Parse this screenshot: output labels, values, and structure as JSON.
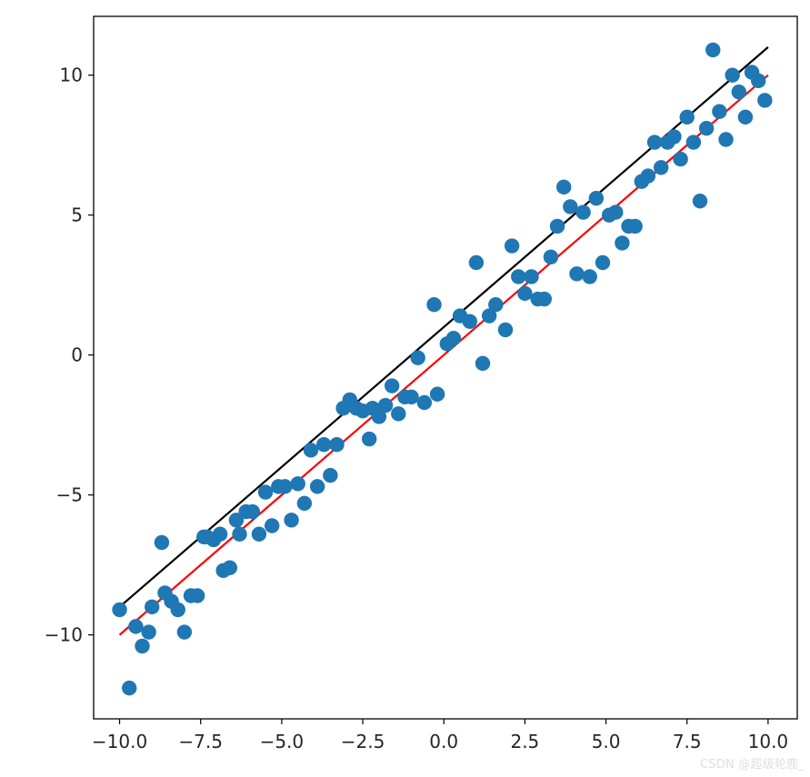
{
  "watermark": "CSDN @超级轮鹿_",
  "colors": {
    "background": "#ffffff",
    "axes": "#000000",
    "points": "#1f77b4",
    "true_line": "#000000",
    "fit_line": "#ff0000",
    "text": "#262626"
  },
  "chart_data": {
    "type": "scatter",
    "title": "",
    "xlabel": "",
    "ylabel": "",
    "xlim": [
      -10.8,
      10.9
    ],
    "ylim": [
      -13.0,
      12.1
    ],
    "xticks": [
      -10.0,
      -7.5,
      -5.0,
      -2.5,
      0.0,
      2.5,
      5.0,
      7.5,
      10.0
    ],
    "xtick_labels": [
      "−10.0",
      "−7.5",
      "−5.0",
      "−2.5",
      "0.0",
      "2.5",
      "5.0",
      "7.5",
      "10.0"
    ],
    "yticks": [
      -10,
      -5,
      0,
      5,
      10
    ],
    "ytick_labels": [
      "−10",
      "−5",
      "0",
      "5",
      "10"
    ],
    "grid": false,
    "legend": null,
    "series": [
      {
        "type": "scatter",
        "color": "#1f77b4",
        "points": [
          [
            -10.0,
            -9.1
          ],
          [
            -9.7,
            -11.9
          ],
          [
            -9.5,
            -9.7
          ],
          [
            -9.3,
            -10.4
          ],
          [
            -9.1,
            -9.9
          ],
          [
            -9.0,
            -9.0
          ],
          [
            -8.7,
            -6.7
          ],
          [
            -8.6,
            -8.5
          ],
          [
            -8.4,
            -8.8
          ],
          [
            -8.2,
            -9.1
          ],
          [
            -8.0,
            -9.9
          ],
          [
            -7.8,
            -8.6
          ],
          [
            -7.6,
            -8.6
          ],
          [
            -7.4,
            -6.5
          ],
          [
            -7.3,
            -6.5
          ],
          [
            -7.1,
            -6.6
          ],
          [
            -6.9,
            -6.4
          ],
          [
            -6.8,
            -7.7
          ],
          [
            -6.6,
            -7.6
          ],
          [
            -6.4,
            -5.9
          ],
          [
            -6.3,
            -6.4
          ],
          [
            -6.1,
            -5.6
          ],
          [
            -5.9,
            -5.6
          ],
          [
            -5.7,
            -6.4
          ],
          [
            -5.5,
            -4.9
          ],
          [
            -5.3,
            -6.1
          ],
          [
            -5.1,
            -4.7
          ],
          [
            -4.9,
            -4.7
          ],
          [
            -4.7,
            -5.9
          ],
          [
            -4.5,
            -4.6
          ],
          [
            -4.3,
            -5.3
          ],
          [
            -4.1,
            -3.4
          ],
          [
            -3.9,
            -4.7
          ],
          [
            -3.7,
            -3.2
          ],
          [
            -3.5,
            -4.3
          ],
          [
            -3.3,
            -3.2
          ],
          [
            -3.1,
            -1.9
          ],
          [
            -2.9,
            -1.6
          ],
          [
            -2.7,
            -1.9
          ],
          [
            -2.5,
            -2.0
          ],
          [
            -2.3,
            -3.0
          ],
          [
            -2.2,
            -1.9
          ],
          [
            -2.0,
            -2.2
          ],
          [
            -1.8,
            -1.8
          ],
          [
            -1.6,
            -1.1
          ],
          [
            -1.4,
            -2.1
          ],
          [
            -1.2,
            -1.5
          ],
          [
            -1.0,
            -1.5
          ],
          [
            -0.8,
            -0.1
          ],
          [
            -0.6,
            -1.7
          ],
          [
            -0.3,
            1.8
          ],
          [
            -0.2,
            -1.4
          ],
          [
            0.1,
            0.4
          ],
          [
            0.3,
            0.6
          ],
          [
            0.5,
            1.4
          ],
          [
            0.8,
            1.2
          ],
          [
            1.0,
            3.3
          ],
          [
            1.2,
            -0.3
          ],
          [
            1.4,
            1.4
          ],
          [
            1.6,
            1.8
          ],
          [
            1.9,
            0.9
          ],
          [
            2.1,
            3.9
          ],
          [
            2.3,
            2.8
          ],
          [
            2.5,
            2.2
          ],
          [
            2.7,
            2.8
          ],
          [
            2.9,
            2.0
          ],
          [
            3.1,
            2.0
          ],
          [
            3.3,
            3.5
          ],
          [
            3.5,
            4.6
          ],
          [
            3.7,
            6.0
          ],
          [
            3.9,
            5.3
          ],
          [
            4.1,
            2.9
          ],
          [
            4.3,
            5.1
          ],
          [
            4.5,
            2.8
          ],
          [
            4.7,
            5.6
          ],
          [
            4.9,
            3.3
          ],
          [
            5.1,
            5.0
          ],
          [
            5.3,
            5.1
          ],
          [
            5.5,
            4.0
          ],
          [
            5.7,
            4.6
          ],
          [
            5.9,
            4.6
          ],
          [
            6.1,
            6.2
          ],
          [
            6.3,
            6.4
          ],
          [
            6.5,
            7.6
          ],
          [
            6.7,
            6.7
          ],
          [
            6.9,
            7.6
          ],
          [
            7.1,
            7.8
          ],
          [
            7.3,
            7.0
          ],
          [
            7.5,
            8.5
          ],
          [
            7.7,
            7.6
          ],
          [
            7.9,
            5.5
          ],
          [
            8.1,
            8.1
          ],
          [
            8.3,
            10.9
          ],
          [
            8.5,
            8.7
          ],
          [
            8.7,
            7.7
          ],
          [
            8.9,
            10.0
          ],
          [
            9.1,
            9.4
          ],
          [
            9.3,
            8.5
          ],
          [
            9.5,
            10.1
          ],
          [
            9.7,
            9.8
          ],
          [
            9.9,
            9.1
          ]
        ]
      },
      {
        "type": "line",
        "color": "#000000",
        "x": [
          -10.0,
          10.0
        ],
        "y": [
          -9.0,
          11.0
        ]
      },
      {
        "type": "line",
        "color": "#ff0000",
        "x": [
          -10.0,
          10.0
        ],
        "y": [
          -10.0,
          10.0
        ]
      }
    ]
  }
}
